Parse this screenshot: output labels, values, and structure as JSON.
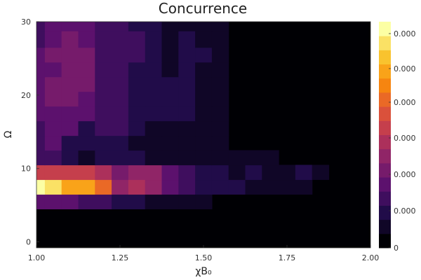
{
  "chart_data": {
    "type": "heatmap",
    "title": "Concurrence",
    "xlabel": "χB₀",
    "ylabel": "Ω",
    "xlim": [
      1.0,
      2.0
    ],
    "ylim": [
      -0.8,
      30
    ],
    "x_ticks": [
      "1.00",
      "1.25",
      "1.50",
      "1.75",
      "2.00"
    ],
    "x_tick_values": [
      1.0,
      1.25,
      1.5,
      1.75,
      2.0
    ],
    "y_ticks": [
      "0",
      "10",
      "20",
      "30"
    ],
    "y_tick_values": [
      0,
      10,
      20,
      30
    ],
    "colorbar": {
      "colormap": "inferno",
      "tick_labels": [
        "0",
        "0.000",
        "0.000",
        "0.000",
        "0.000",
        "0.000",
        "0.000"
      ],
      "levels": 16
    },
    "x": [
      1.0,
      1.05,
      1.1,
      1.15,
      1.2,
      1.25,
      1.3,
      1.35,
      1.4,
      1.45,
      1.5,
      1.55,
      1.6,
      1.65,
      1.7,
      1.75,
      1.8,
      1.85,
      1.9,
      1.95,
      2.0
    ],
    "y": [
      -0.8,
      1.5,
      3.5,
      5.5,
      7.5,
      9.5,
      11.5,
      13.5,
      15.5,
      17.5,
      19.5,
      21.5,
      23.5,
      25.5,
      27.5,
      30
    ],
    "z": [
      [
        0,
        0,
        0,
        0,
        0,
        0,
        0,
        0,
        0,
        0,
        0,
        0,
        0,
        0,
        0,
        0,
        0,
        0,
        0,
        0,
        0
      ],
      [
        0,
        0,
        0,
        0,
        0,
        0,
        0,
        0,
        0,
        0,
        0,
        0,
        0,
        0,
        0,
        0,
        0,
        0,
        0,
        0,
        0
      ],
      [
        0,
        0,
        0,
        0,
        0,
        0,
        0,
        0,
        0,
        0,
        0,
        0,
        0,
        0,
        0,
        0,
        0,
        0,
        0,
        0,
        0
      ],
      [
        4,
        4,
        4,
        3,
        3,
        2,
        2,
        1,
        1,
        1,
        1,
        0,
        0,
        0,
        0,
        0,
        0,
        0,
        0,
        0,
        0
      ],
      [
        15,
        14,
        12,
        12,
        10,
        6,
        7,
        6,
        4,
        3,
        2,
        2,
        2,
        1,
        1,
        1,
        1,
        0,
        0,
        0,
        0
      ],
      [
        8,
        8,
        8,
        8,
        7,
        5,
        6,
        6,
        4,
        3,
        2,
        2,
        1,
        2,
        1,
        1,
        2,
        1,
        0,
        0,
        0
      ],
      [
        3,
        3,
        2,
        1,
        2,
        2,
        2,
        1,
        1,
        1,
        1,
        1,
        1,
        1,
        1,
        0,
        0,
        0,
        0,
        0,
        0
      ],
      [
        3,
        4,
        2,
        2,
        2,
        2,
        1,
        1,
        1,
        1,
        1,
        1,
        0,
        0,
        0,
        0,
        0,
        0,
        0,
        0,
        0
      ],
      [
        3,
        4,
        4,
        2,
        3,
        3,
        2,
        1,
        1,
        1,
        1,
        1,
        0,
        0,
        0,
        0,
        0,
        0,
        0,
        0,
        0
      ],
      [
        4,
        4,
        4,
        4,
        3,
        3,
        2,
        2,
        2,
        2,
        1,
        1,
        0,
        0,
        0,
        0,
        0,
        0,
        0,
        0,
        0
      ],
      [
        4,
        5,
        5,
        4,
        3,
        3,
        2,
        2,
        2,
        2,
        1,
        1,
        0,
        0,
        0,
        0,
        0,
        0,
        0,
        0,
        0
      ],
      [
        4,
        5,
        5,
        5,
        3,
        3,
        2,
        2,
        2,
        2,
        1,
        1,
        0,
        0,
        0,
        0,
        0,
        0,
        0,
        0,
        0
      ],
      [
        4,
        4,
        5,
        5,
        3,
        3,
        2,
        2,
        1,
        2,
        1,
        1,
        0,
        0,
        0,
        0,
        0,
        0,
        0,
        0,
        0
      ],
      [
        4,
        5,
        5,
        5,
        3,
        3,
        3,
        2,
        1,
        2,
        2,
        1,
        0,
        0,
        0,
        0,
        0,
        0,
        0,
        0,
        0
      ],
      [
        3,
        4,
        5,
        4,
        3,
        3,
        3,
        2,
        1,
        2,
        1,
        1,
        0,
        0,
        0,
        0,
        0,
        0,
        0,
        0,
        0
      ],
      [
        3,
        4,
        4,
        4,
        3,
        3,
        2,
        2,
        1,
        1,
        1,
        1,
        0,
        0,
        0,
        0,
        0,
        0,
        0,
        0,
        0
      ]
    ]
  }
}
